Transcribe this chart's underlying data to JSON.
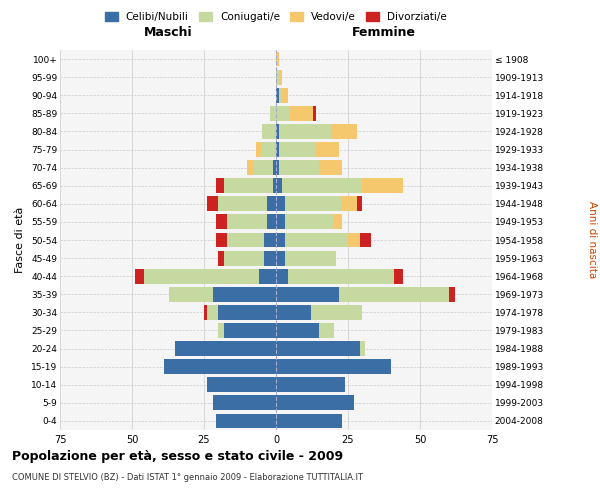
{
  "age_groups": [
    "0-4",
    "5-9",
    "10-14",
    "15-19",
    "20-24",
    "25-29",
    "30-34",
    "35-39",
    "40-44",
    "45-49",
    "50-54",
    "55-59",
    "60-64",
    "65-69",
    "70-74",
    "75-79",
    "80-84",
    "85-89",
    "90-94",
    "95-99",
    "100+"
  ],
  "birth_years": [
    "2004-2008",
    "1999-2003",
    "1994-1998",
    "1989-1993",
    "1984-1988",
    "1979-1983",
    "1974-1978",
    "1969-1973",
    "1964-1968",
    "1959-1963",
    "1954-1958",
    "1949-1953",
    "1944-1948",
    "1939-1943",
    "1934-1938",
    "1929-1933",
    "1924-1928",
    "1919-1923",
    "1914-1918",
    "1909-1913",
    "≤ 1908"
  ],
  "colors": {
    "celibi": "#3a6ea5",
    "coniugati": "#c5d9a0",
    "vedovi": "#f5c86e",
    "divorziati": "#cc2222"
  },
  "maschi": {
    "celibi": [
      21,
      22,
      24,
      39,
      35,
      18,
      20,
      22,
      6,
      4,
      4,
      3,
      3,
      1,
      1,
      0,
      0,
      0,
      0,
      0,
      0
    ],
    "coniugati": [
      0,
      0,
      0,
      0,
      0,
      2,
      4,
      15,
      40,
      14,
      13,
      14,
      17,
      17,
      7,
      5,
      5,
      2,
      0,
      0,
      0
    ],
    "vedovi": [
      0,
      0,
      0,
      0,
      0,
      0,
      0,
      0,
      0,
      0,
      0,
      0,
      0,
      0,
      2,
      2,
      0,
      0,
      0,
      0,
      0
    ],
    "divorziati": [
      0,
      0,
      0,
      0,
      0,
      0,
      1,
      0,
      3,
      2,
      4,
      4,
      4,
      3,
      0,
      0,
      0,
      0,
      0,
      0,
      0
    ]
  },
  "femmine": {
    "celibi": [
      23,
      27,
      24,
      40,
      29,
      15,
      12,
      22,
      4,
      3,
      3,
      3,
      3,
      2,
      1,
      1,
      1,
      0,
      1,
      0,
      0
    ],
    "coniugati": [
      0,
      0,
      0,
      0,
      2,
      5,
      18,
      38,
      37,
      18,
      22,
      17,
      20,
      28,
      14,
      13,
      18,
      5,
      1,
      1,
      0
    ],
    "vedovi": [
      0,
      0,
      0,
      0,
      0,
      0,
      0,
      0,
      0,
      0,
      4,
      3,
      5,
      14,
      8,
      8,
      9,
      8,
      2,
      1,
      1
    ],
    "divorziati": [
      0,
      0,
      0,
      0,
      0,
      0,
      0,
      2,
      3,
      0,
      4,
      0,
      2,
      0,
      0,
      0,
      0,
      1,
      0,
      0,
      0
    ]
  },
  "xlim": 75,
  "title": "Popolazione per età, sesso e stato civile - 2009",
  "subtitle": "COMUNE DI STELVIO (BZ) - Dati ISTAT 1° gennaio 2009 - Elaborazione TUTTITALIA.IT",
  "xlabel_left": "Maschi",
  "xlabel_right": "Femmine",
  "ylabel_left": "Fasce di età",
  "ylabel_right": "Anni di nascita",
  "legend_labels": [
    "Celibi/Nubili",
    "Coniugati/e",
    "Vedovi/e",
    "Divorziati/e"
  ],
  "bg_color": "#f5f5f5",
  "grid_color": "#cccccc"
}
